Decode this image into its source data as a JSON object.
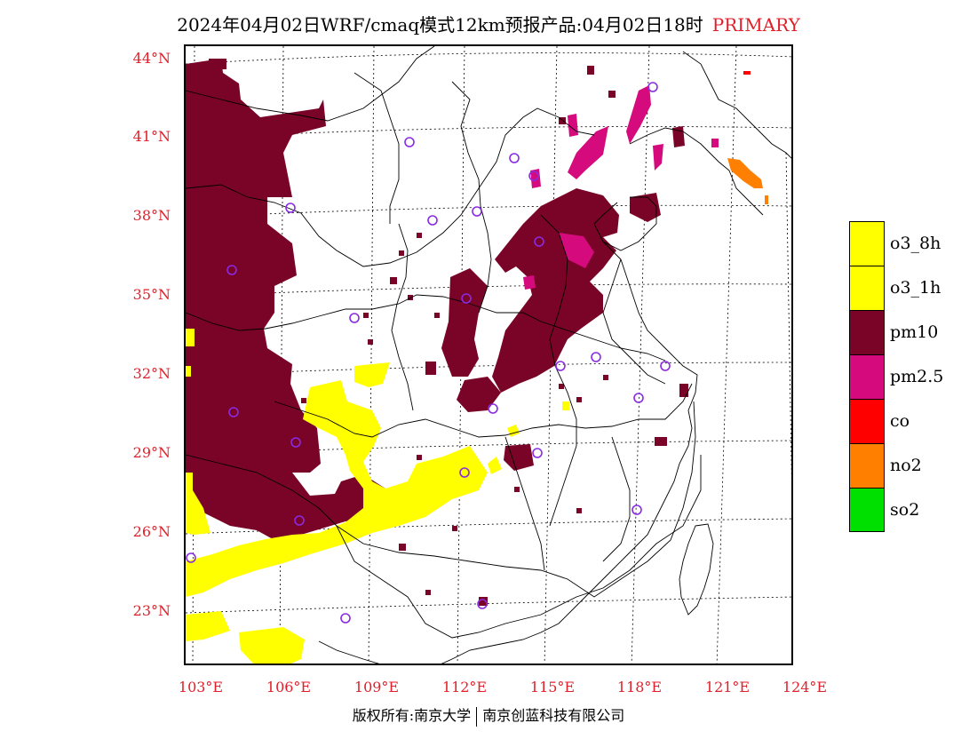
{
  "title": {
    "text": "2024年04月02日WRF/cmaq模式12km预报产品:04月02日18时",
    "tag": "PRIMARY"
  },
  "axes": {
    "lat_labels": [
      "44°N",
      "41°N",
      "38°N",
      "35°N",
      "32°N",
      "29°N",
      "26°N",
      "23°N"
    ],
    "lon_labels": [
      "103°E",
      "106°E",
      "109°E",
      "112°E",
      "115°E",
      "118°E",
      "121°E",
      "124°E"
    ]
  },
  "legend": [
    {
      "label": "o3_8h",
      "color": "#ffff00"
    },
    {
      "label": "o3_1h",
      "color": "#ffff00"
    },
    {
      "label": "pm10",
      "color": "#7a0428"
    },
    {
      "label": "pm2.5",
      "color": "#d40a7d"
    },
    {
      "label": "co",
      "color": "#ff0000"
    },
    {
      "label": "no2",
      "color": "#ff8000"
    },
    {
      "label": "so2",
      "color": "#00e000"
    }
  ],
  "footer": {
    "left": "版权所有:南京大学",
    "right": "南京创蓝科技有限公司"
  },
  "colors": {
    "pm10": "#7a0428",
    "pm25": "#d40a7d",
    "o3": "#ffff00",
    "no2": "#ff8000",
    "co": "#ff0000",
    "station": "#8a2be2",
    "label": "#e0202a"
  }
}
